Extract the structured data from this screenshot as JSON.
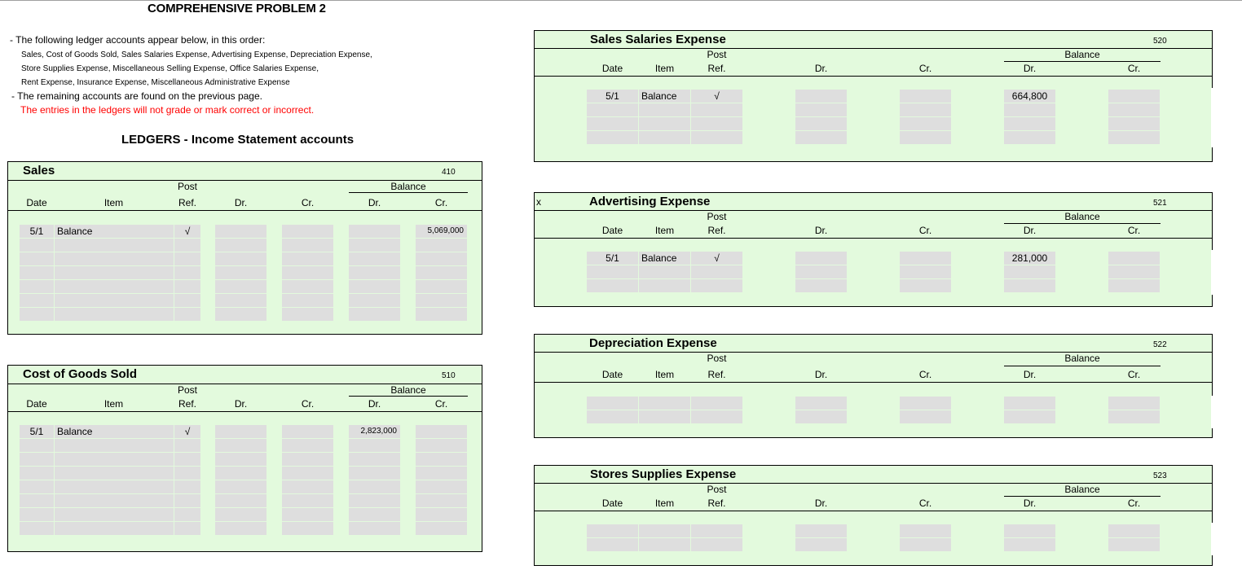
{
  "header": {
    "title": "COMPREHENSIVE PROBLEM 2",
    "instructions": [
      "-  The following ledger accounts appear below, in this order:",
      "Sales,  Cost of Goods Sold, Sales Salaries Expense, Advertising Expense, Depreciation Expense,",
      " Store Supplies Expense, Miscellaneous Selling Expense, Office Salaries Expense,",
      "Rent Expense, Insurance Expense, Miscellaneous Administrative Expense",
      " - The remaining accounts are found on the previous page."
    ],
    "warning": "The entries in the ledgers will not grade or mark correct or incorrect.",
    "section_title": "LEDGERS - Income Statement accounts"
  },
  "columns": {
    "post": "Post",
    "balance": "Balance",
    "date": "Date",
    "item": "Item",
    "ref": "Ref.",
    "dr": "Dr.",
    "cr": "Cr.",
    "bal_dr": "Dr.",
    "bal_cr": "Cr."
  },
  "ledgers": {
    "sales": {
      "name": "Sales",
      "number": "410",
      "rows": [
        {
          "date": "5/1",
          "item": "Balance",
          "ref": "√",
          "dr": "",
          "cr": "",
          "bal_dr": "",
          "bal_cr": "5,069,000"
        },
        {
          "date": "",
          "item": "",
          "ref": "",
          "dr": "",
          "cr": "",
          "bal_dr": "",
          "bal_cr": ""
        },
        {
          "date": "",
          "item": "",
          "ref": "",
          "dr": "",
          "cr": "",
          "bal_dr": "",
          "bal_cr": ""
        },
        {
          "date": "",
          "item": "",
          "ref": "",
          "dr": "",
          "cr": "",
          "bal_dr": "",
          "bal_cr": ""
        },
        {
          "date": "",
          "item": "",
          "ref": "",
          "dr": "",
          "cr": "",
          "bal_dr": "",
          "bal_cr": ""
        },
        {
          "date": "",
          "item": "",
          "ref": "",
          "dr": "",
          "cr": "",
          "bal_dr": "",
          "bal_cr": ""
        },
        {
          "date": "",
          "item": "",
          "ref": "",
          "dr": "",
          "cr": "",
          "bal_dr": "",
          "bal_cr": ""
        }
      ]
    },
    "cogs": {
      "name": "Cost of Goods Sold",
      "number": "510",
      "rows": [
        {
          "date": "5/1",
          "item": "Balance",
          "ref": "√",
          "dr": "",
          "cr": "",
          "bal_dr": "2,823,000",
          "bal_cr": ""
        },
        {
          "date": "",
          "item": "",
          "ref": "",
          "dr": "",
          "cr": "",
          "bal_dr": "",
          "bal_cr": ""
        },
        {
          "date": "",
          "item": "",
          "ref": "",
          "dr": "",
          "cr": "",
          "bal_dr": "",
          "bal_cr": ""
        },
        {
          "date": "",
          "item": "",
          "ref": "",
          "dr": "",
          "cr": "",
          "bal_dr": "",
          "bal_cr": ""
        },
        {
          "date": "",
          "item": "",
          "ref": "",
          "dr": "",
          "cr": "",
          "bal_dr": "",
          "bal_cr": ""
        },
        {
          "date": "",
          "item": "",
          "ref": "",
          "dr": "",
          "cr": "",
          "bal_dr": "",
          "bal_cr": ""
        },
        {
          "date": "",
          "item": "",
          "ref": "",
          "dr": "",
          "cr": "",
          "bal_dr": "",
          "bal_cr": ""
        },
        {
          "date": "",
          "item": "",
          "ref": "",
          "dr": "",
          "cr": "",
          "bal_dr": "",
          "bal_cr": ""
        }
      ]
    },
    "sales_salaries": {
      "name": "Sales Salaries Expense",
      "number": "520",
      "rows": [
        {
          "date": "5/1",
          "item": "Balance",
          "ref": "√",
          "dr": "",
          "cr": "",
          "bal_dr": "664,800",
          "bal_cr": ""
        },
        {
          "date": "",
          "item": "",
          "ref": "",
          "dr": "",
          "cr": "",
          "bal_dr": "",
          "bal_cr": ""
        },
        {
          "date": "",
          "item": "",
          "ref": "",
          "dr": "",
          "cr": "",
          "bal_dr": "",
          "bal_cr": ""
        },
        {
          "date": "",
          "item": "",
          "ref": "",
          "dr": "",
          "cr": "",
          "bal_dr": "",
          "bal_cr": ""
        }
      ]
    },
    "advertising": {
      "name": "Advertising Expense",
      "number": "521",
      "marker": "x",
      "rows": [
        {
          "date": "5/1",
          "item": "Balance",
          "ref": "√",
          "dr": "",
          "cr": "",
          "bal_dr": "281,000",
          "bal_cr": ""
        },
        {
          "date": "",
          "item": "",
          "ref": "",
          "dr": "",
          "cr": "",
          "bal_dr": "",
          "bal_cr": ""
        },
        {
          "date": "",
          "item": "",
          "ref": "",
          "dr": "",
          "cr": "",
          "bal_dr": "",
          "bal_cr": ""
        }
      ]
    },
    "depreciation": {
      "name": "Depreciation Expense",
      "number": "522",
      "rows": [
        {
          "date": "",
          "item": "",
          "ref": "",
          "dr": "",
          "cr": "",
          "bal_dr": "",
          "bal_cr": ""
        },
        {
          "date": "",
          "item": "",
          "ref": "",
          "dr": "",
          "cr": "",
          "bal_dr": "",
          "bal_cr": ""
        }
      ]
    },
    "stores_supplies": {
      "name": "Stores Supplies Expense",
      "number": "523",
      "rows": [
        {
          "date": "",
          "item": "",
          "ref": "",
          "dr": "",
          "cr": "",
          "bal_dr": "",
          "bal_cr": ""
        },
        {
          "date": "",
          "item": "",
          "ref": "",
          "dr": "",
          "cr": "",
          "bal_dr": "",
          "bal_cr": ""
        }
      ]
    }
  },
  "colors": {
    "panel_bg": "#e3fadd",
    "cell_bg": "#dedede",
    "warning": "#ff0000"
  }
}
